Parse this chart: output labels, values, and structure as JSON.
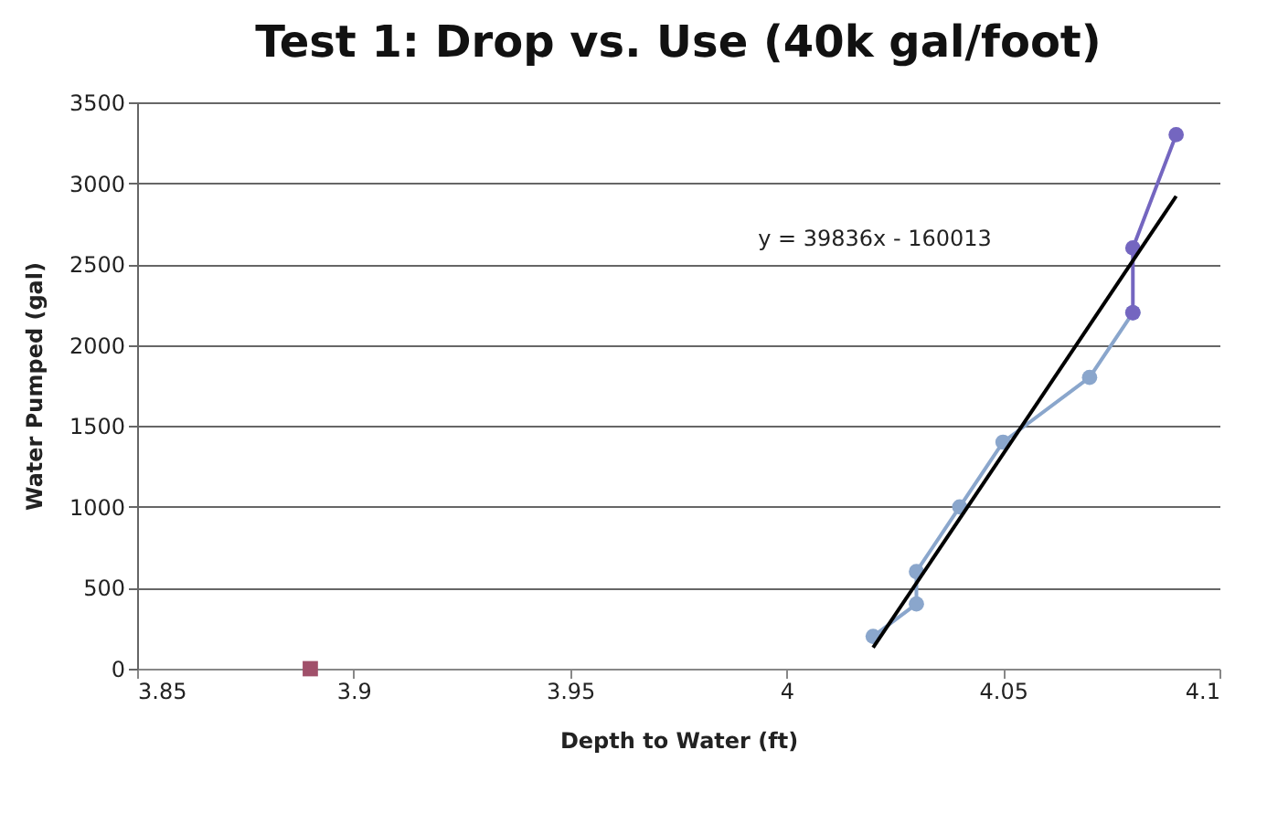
{
  "chart_data": {
    "type": "scatter",
    "title": "Test 1: Drop  vs. Use (40k gal/foot)",
    "xlabel": "Depth to Water (ft)",
    "ylabel": "Water Pumped (gal)",
    "xlim": [
      3.85,
      4.1
    ],
    "xticks": [
      3.85,
      3.9,
      3.95,
      4,
      4.05,
      4.1
    ],
    "ylim": [
      0,
      3500
    ],
    "yticks": [
      0,
      500,
      1000,
      1500,
      2000,
      2500,
      3000,
      3500
    ],
    "grid": "y",
    "marker": "circle",
    "line_style": "solid",
    "series": [
      {
        "type": "line",
        "color": "#8aa6cc",
        "x": [
          4.02,
          4.03,
          4.03,
          4.04,
          4.05,
          4.07,
          4.08
        ],
        "values": [
          200,
          400,
          600,
          1000,
          1400,
          1800,
          2200
        ]
      },
      {
        "type": "line",
        "color": "#7466c0",
        "x": [
          4.08,
          4.08,
          4.09
        ],
        "values": [
          2200,
          2600,
          3300
        ]
      },
      {
        "color": "#a0506a",
        "marker": "square",
        "x": [
          3.89
        ],
        "values": [
          0
        ]
      },
      {
        "type": "line",
        "color": "#000000",
        "marker": "none",
        "x": [
          4.02,
          4.09
        ],
        "values": [
          130,
          2920
        ]
      }
    ],
    "annotations": [
      "y = 39836x - 160013"
    ]
  }
}
